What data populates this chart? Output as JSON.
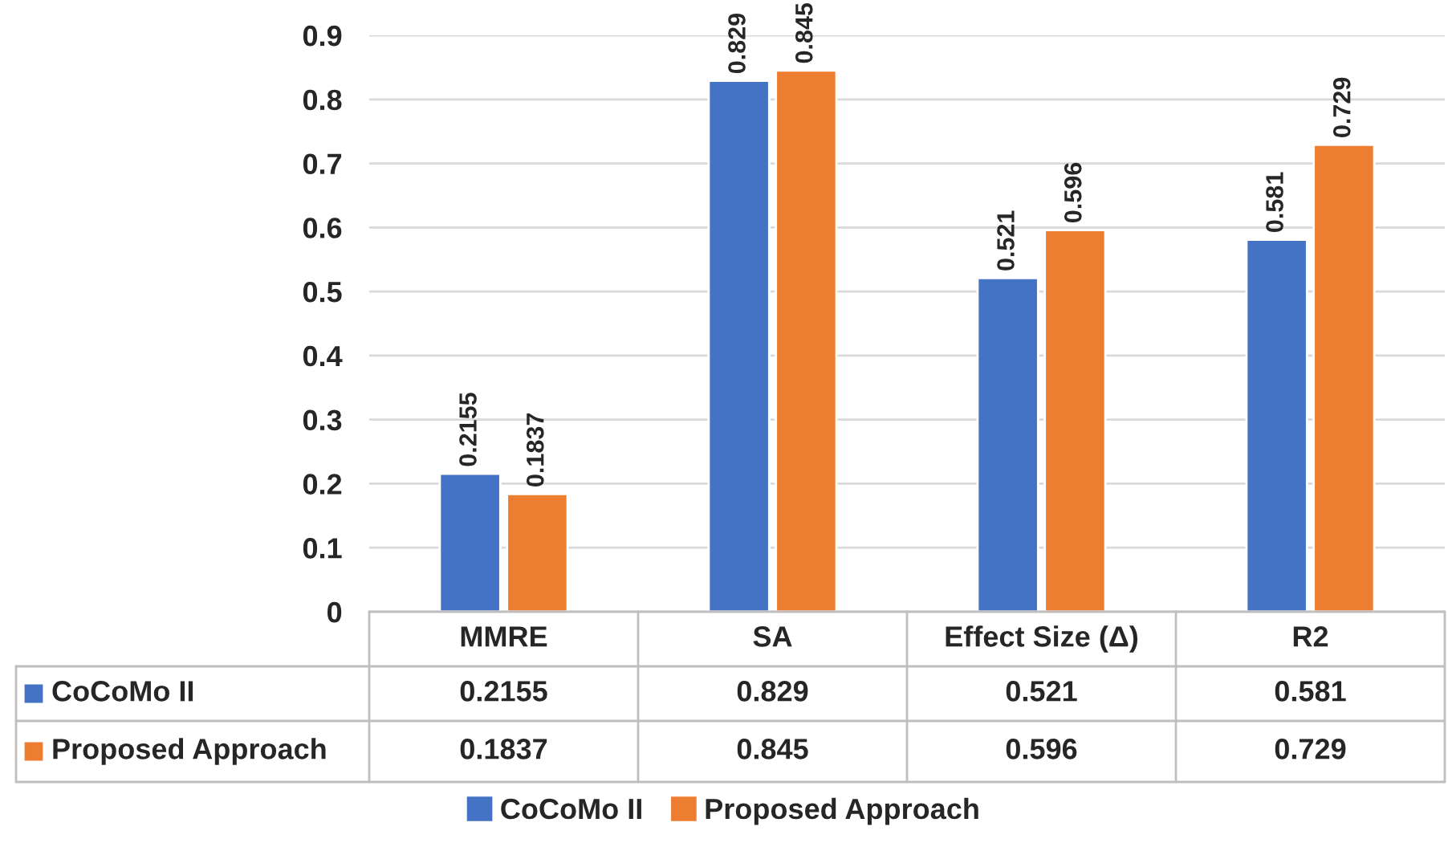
{
  "chart_data": {
    "type": "bar",
    "categories": [
      "MMRE",
      "SA",
      "Effect Size (Δ)",
      "R2"
    ],
    "series": [
      {
        "name": "CoCoMo II",
        "color": "#4472c4",
        "values": [
          0.2155,
          0.829,
          0.521,
          0.581
        ],
        "value_labels": [
          "0.2155",
          "0.829",
          "0.521",
          "0.581"
        ]
      },
      {
        "name": "Proposed Approach",
        "color": "#ed7d31",
        "values": [
          0.1837,
          0.845,
          0.596,
          0.729
        ],
        "value_labels": [
          "0.1837",
          "0.845",
          "0.596",
          "0.729"
        ]
      }
    ],
    "ylim": [
      0,
      0.9
    ],
    "yticks": [
      0,
      0.1,
      0.2,
      0.3,
      0.4,
      0.5,
      0.6,
      0.7,
      0.8,
      0.9
    ],
    "grid": "y",
    "legend": "bottom"
  }
}
